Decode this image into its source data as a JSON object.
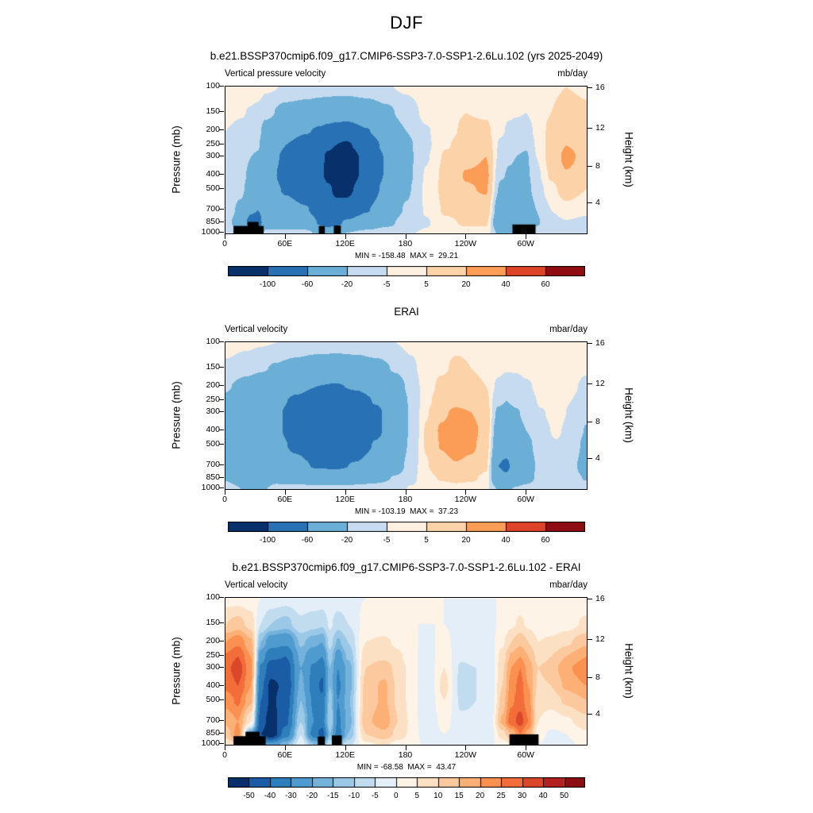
{
  "main_title": "DJF",
  "axes": {
    "pressure_label": "Pressure (mb)",
    "height_label": "Height (km)",
    "pressure_ticks": [
      100,
      150,
      200,
      250,
      300,
      400,
      500,
      700,
      850,
      1000
    ],
    "height_ticks": [
      {
        "km": "16",
        "p": 103
      },
      {
        "km": "12",
        "p": 193
      },
      {
        "km": "8",
        "p": 356
      },
      {
        "km": "4",
        "p": 628
      }
    ],
    "lon_ticks": [
      {
        "label": "0",
        "deg": 0
      },
      {
        "label": "60E",
        "deg": 60
      },
      {
        "label": "120E",
        "deg": 120
      },
      {
        "label": "180",
        "deg": 180
      },
      {
        "label": "120W",
        "deg": 240
      },
      {
        "label": "60W",
        "deg": 300
      }
    ]
  },
  "colormaps": {
    "main": {
      "boundaries": [
        -100,
        -60,
        -20,
        -5,
        5,
        20,
        40,
        60
      ],
      "tick_labels": [
        "-100",
        "-60",
        "-20",
        "-5",
        "5",
        "20",
        "40",
        "60"
      ],
      "colors": [
        "#08306b",
        "#2971b5",
        "#6baed6",
        "#c6dbef",
        "#fdf0e1",
        "#fcd2a9",
        "#fb9c57",
        "#dc4327",
        "#8f0d12"
      ]
    },
    "diff": {
      "boundaries": [
        -50,
        -40,
        -30,
        -20,
        -15,
        -10,
        -5,
        0,
        5,
        10,
        15,
        20,
        25,
        30,
        40,
        50
      ],
      "tick_labels": [
        "-50",
        "-40",
        "-30",
        "-20",
        "-15",
        "-10",
        "-5",
        "0",
        "5",
        "10",
        "15",
        "20",
        "25",
        "30",
        "40",
        "50"
      ],
      "colors": [
        "#08306b",
        "#1b5ca6",
        "#2e7ebc",
        "#4f9bcf",
        "#74b2dc",
        "#9ac8e6",
        "#c1dcef",
        "#e3eef8",
        "#fdf3e6",
        "#fce0c4",
        "#fcc99e",
        "#fcb076",
        "#fa9150",
        "#f26d3a",
        "#da472a",
        "#b41f20",
        "#8c0d12"
      ]
    }
  },
  "chart_data": [
    {
      "type": "heatmap",
      "title": "b.e21.BSSP370cmip6.f09_g17.CMIP6-SSP3-7.0-SSP1-2.6Lu.102 (yrs 2025-2049)",
      "var_label": "Vertical pressure velocity",
      "units": "mb/day",
      "min": -158.48,
      "max": 29.21,
      "stats_label": "MIN = -158.48  MAX =  29.21",
      "cmap": "main",
      "x_name": "longitude_deg",
      "y_name": "pressure_mb",
      "levels": [
        100,
        150,
        200,
        250,
        300,
        400,
        500,
        700,
        850,
        1000
      ],
      "lons": [
        0,
        15,
        25,
        32,
        40,
        60,
        80,
        95,
        102,
        110,
        120,
        140,
        160,
        180,
        200,
        220,
        240,
        260,
        275,
        283,
        290,
        300,
        310,
        325,
        340,
        360
      ],
      "values": [
        [
          2,
          -2,
          -5,
          -6,
          -6,
          -7,
          -8,
          -10,
          -12,
          -8
        ],
        [
          1,
          -4,
          -8,
          -10,
          -12,
          -14,
          -16,
          -25,
          -35,
          -20
        ],
        [
          0,
          -6,
          -12,
          -16,
          -20,
          -25,
          -30,
          -55,
          -75,
          -40
        ],
        [
          0,
          -8,
          -14,
          -18,
          -22,
          -28,
          -35,
          -60,
          -80,
          -45
        ],
        [
          -3,
          -15,
          -30,
          -40,
          -45,
          -50,
          -50,
          -45,
          -35,
          -15
        ],
        [
          -6,
          -28,
          -50,
          -60,
          -65,
          -68,
          -62,
          -52,
          -38,
          -14
        ],
        [
          -8,
          -33,
          -58,
          -72,
          -80,
          -82,
          -72,
          -58,
          -40,
          -14
        ],
        [
          -10,
          -38,
          -65,
          -85,
          -95,
          -95,
          -85,
          -75,
          -65,
          -30
        ],
        [
          -10,
          -40,
          -70,
          -95,
          -105,
          -108,
          -95,
          -85,
          -75,
          -35
        ],
        [
          -11,
          -42,
          -75,
          -100,
          -112,
          -115,
          -105,
          -90,
          -70,
          -30
        ],
        [
          -11,
          -44,
          -78,
          -105,
          -118,
          -118,
          -108,
          -85,
          -55,
          -20
        ],
        [
          -9,
          -36,
          -62,
          -82,
          -92,
          -92,
          -82,
          -62,
          -40,
          -14
        ],
        [
          -6,
          -25,
          -42,
          -52,
          -58,
          -58,
          -52,
          -40,
          -26,
          -10
        ],
        [
          -3,
          -12,
          -20,
          -25,
          -26,
          -26,
          -23,
          -18,
          -12,
          -6
        ],
        [
          1,
          -2,
          -6,
          -7,
          -6,
          -4,
          -3,
          -4,
          -6,
          -4
        ],
        [
          3,
          3,
          2,
          4,
          7,
          9,
          9,
          7,
          2,
          -2
        ],
        [
          4,
          5,
          7,
          11,
          16,
          21,
          19,
          14,
          7,
          0
        ],
        [
          3,
          4,
          7,
          12,
          20,
          23,
          21,
          15,
          7,
          0
        ],
        [
          2,
          0,
          -3,
          -8,
          -12,
          -18,
          -25,
          -45,
          -55,
          -28
        ],
        [
          1,
          -3,
          -8,
          -14,
          -18,
          -22,
          -28,
          -50,
          -58,
          -30
        ],
        [
          0,
          -4,
          -10,
          -16,
          -20,
          -24,
          -28,
          -45,
          -50,
          -26
        ],
        [
          0,
          -5,
          -12,
          -18,
          -22,
          -25,
          -28,
          -42,
          -45,
          -24
        ],
        [
          2,
          0,
          -2,
          -4,
          -5,
          -8,
          -12,
          -20,
          -22,
          -14
        ],
        [
          4,
          5,
          8,
          10,
          10,
          7,
          2,
          -5,
          -10,
          -9
        ],
        [
          5,
          8,
          14,
          20,
          24,
          19,
          11,
          1,
          -6,
          -7
        ],
        [
          4,
          6,
          11,
          15,
          15,
          11,
          5,
          -3,
          -8,
          -8
        ]
      ],
      "topo_bars": [
        {
          "from": 8,
          "to": 38,
          "top_p": 900
        },
        {
          "from": 22,
          "to": 33,
          "top_p": 845
        },
        {
          "from": 93,
          "to": 99,
          "top_p": 900
        },
        {
          "from": 108,
          "to": 115,
          "top_p": 895
        },
        {
          "from": 286,
          "to": 309,
          "top_p": 880
        }
      ]
    },
    {
      "type": "heatmap",
      "title": "ERAI",
      "var_label": "Vertical velocity",
      "units": "mbar/day",
      "min": -103.19,
      "max": 37.23,
      "stats_label": "MIN = -103.19  MAX =  37.23",
      "cmap": "main",
      "x_name": "longitude_deg",
      "y_name": "pressure_mb",
      "levels": [
        100,
        150,
        200,
        250,
        300,
        400,
        500,
        700,
        850,
        1000
      ],
      "lons": [
        0,
        20,
        35,
        50,
        70,
        90,
        110,
        130,
        150,
        170,
        185,
        200,
        215,
        230,
        245,
        260,
        272,
        280,
        290,
        300,
        315,
        330,
        345,
        360
      ],
      "values": [
        [
          1,
          -8,
          -18,
          -24,
          -28,
          -32,
          -32,
          -28,
          -22,
          -10
        ],
        [
          -2,
          -14,
          -28,
          -36,
          -42,
          -46,
          -46,
          -42,
          -50,
          -22
        ],
        [
          -4,
          -18,
          -35,
          -45,
          -50,
          -52,
          -50,
          -45,
          -55,
          -25
        ],
        [
          -5,
          -22,
          -42,
          -52,
          -56,
          -56,
          -52,
          -42,
          -30,
          -12
        ],
        [
          -7,
          -28,
          -52,
          -65,
          -72,
          -72,
          -65,
          -52,
          -33,
          -12
        ],
        [
          -9,
          -34,
          -60,
          -78,
          -88,
          -90,
          -80,
          -62,
          -38,
          -13
        ],
        [
          -10,
          -36,
          -62,
          -82,
          -92,
          -94,
          -84,
          -64,
          -40,
          -14
        ],
        [
          -9,
          -33,
          -57,
          -74,
          -84,
          -84,
          -76,
          -58,
          -36,
          -12
        ],
        [
          -7,
          -27,
          -46,
          -58,
          -65,
          -65,
          -58,
          -45,
          -28,
          -10
        ],
        [
          -5,
          -18,
          -30,
          -38,
          -42,
          -42,
          -38,
          -30,
          -18,
          -8
        ],
        [
          -2,
          -8,
          -14,
          -17,
          -18,
          -18,
          -16,
          -12,
          -8,
          -4
        ],
        [
          1,
          1,
          1,
          2,
          4,
          6,
          6,
          4,
          1,
          -2
        ],
        [
          3,
          4,
          7,
          11,
          17,
          22,
          21,
          15,
          6,
          -1
        ],
        [
          4,
          6,
          9,
          15,
          23,
          29,
          27,
          19,
          9,
          0
        ],
        [
          4,
          5,
          8,
          13,
          20,
          25,
          23,
          16,
          7,
          -1
        ],
        [
          3,
          3,
          5,
          8,
          12,
          14,
          12,
          7,
          2,
          -2
        ],
        [
          1,
          -2,
          -8,
          -16,
          -24,
          -34,
          -44,
          -60,
          -50,
          -22
        ],
        [
          0,
          -4,
          -12,
          -20,
          -28,
          -38,
          -48,
          -65,
          -55,
          -24
        ],
        [
          0,
          -4,
          -10,
          -16,
          -22,
          -28,
          -34,
          -46,
          -38,
          -18
        ],
        [
          1,
          -2,
          -7,
          -11,
          -15,
          -20,
          -25,
          -32,
          -28,
          -14
        ],
        [
          2,
          1,
          -1,
          -3,
          -6,
          -9,
          -11,
          -13,
          -13,
          -8
        ],
        [
          3,
          3,
          3,
          2,
          0,
          -3,
          -6,
          -10,
          -12,
          -8
        ],
        [
          2,
          1,
          -2,
          -5,
          -7,
          -10,
          -13,
          -17,
          -16,
          -9
        ],
        [
          1,
          -3,
          -9,
          -14,
          -17,
          -21,
          -24,
          -26,
          -21,
          -11
        ]
      ],
      "topo_bars": []
    },
    {
      "type": "heatmap",
      "title": "b.e21.BSSP370cmip6.f09_g17.CMIP6-SSP3-7.0-SSP1-2.6Lu.102 - ERAI",
      "var_label": "Vertical velocity",
      "units": "mbar/day",
      "min": -68.58,
      "max": 43.47,
      "stats_label": "MIN = -68.58  MAX =  43.47",
      "cmap": "diff",
      "x_name": "longitude_deg",
      "y_name": "pressure_mb",
      "levels": [
        100,
        150,
        200,
        250,
        300,
        400,
        500,
        700,
        850,
        1000
      ],
      "lons": [
        0,
        12,
        25,
        35,
        45,
        60,
        75,
        88,
        96,
        104,
        112,
        122,
        140,
        158,
        172,
        185,
        200,
        218,
        235,
        250,
        264,
        276,
        285,
        294,
        302,
        312,
        325,
        340,
        360
      ],
      "values": [
        [
          3,
          10,
          20,
          26,
          28,
          26,
          22,
          16,
          12,
          6
        ],
        [
          3,
          12,
          24,
          30,
          33,
          30,
          26,
          20,
          22,
          10
        ],
        [
          2,
          8,
          16,
          20,
          22,
          20,
          16,
          5,
          -20,
          -10
        ],
        [
          0,
          -5,
          -15,
          -25,
          -32,
          -38,
          -40,
          -45,
          -50,
          -25
        ],
        [
          -2,
          -10,
          -25,
          -38,
          -46,
          -52,
          -52,
          -55,
          -58,
          -28
        ],
        [
          -3,
          -12,
          -28,
          -40,
          -46,
          -48,
          -45,
          -42,
          -35,
          -16
        ],
        [
          -2,
          -6,
          -14,
          -18,
          -20,
          -18,
          -15,
          -10,
          -5,
          -2
        ],
        [
          -2,
          -8,
          -18,
          -26,
          -32,
          -35,
          -32,
          -30,
          -35,
          -15
        ],
        [
          -2,
          -9,
          -20,
          -30,
          -38,
          -42,
          -38,
          -35,
          -45,
          -20
        ],
        [
          -1,
          -4,
          -8,
          -12,
          -15,
          -15,
          -12,
          -10,
          -15,
          -6
        ],
        [
          -2,
          -8,
          -16,
          -24,
          -30,
          -32,
          -30,
          -32,
          -35,
          -15
        ],
        [
          -1,
          -5,
          -10,
          -14,
          -18,
          -18,
          -16,
          -18,
          -15,
          -7
        ],
        [
          0,
          2,
          5,
          8,
          10,
          12,
          12,
          14,
          10,
          4
        ],
        [
          0,
          2,
          6,
          9,
          13,
          16,
          16,
          18,
          14,
          6
        ],
        [
          0,
          1,
          4,
          6,
          8,
          9,
          9,
          10,
          8,
          3
        ],
        [
          0,
          0,
          1,
          2,
          3,
          3,
          3,
          4,
          4,
          2
        ],
        [
          0,
          0,
          -1,
          -3,
          -4,
          -5,
          -5,
          -5,
          -3,
          -1
        ],
        [
          0,
          0,
          1,
          3,
          5,
          7,
          5,
          2,
          0,
          -1
        ],
        [
          0,
          -1,
          -2,
          -4,
          -6,
          -7,
          -6,
          -4,
          -2,
          -1
        ],
        [
          0,
          -1,
          -2,
          -3,
          -5,
          -5,
          -5,
          -4,
          -2,
          -1
        ],
        [
          0,
          -1,
          -2,
          -3,
          -4,
          -4,
          -4,
          -3,
          -2,
          -1
        ],
        [
          0,
          1,
          4,
          7,
          9,
          10,
          12,
          16,
          8,
          2
        ],
        [
          1,
          4,
          10,
          16,
          20,
          22,
          24,
          28,
          15,
          5
        ],
        [
          2,
          6,
          14,
          20,
          25,
          27,
          28,
          32,
          25,
          10
        ],
        [
          1,
          4,
          10,
          15,
          18,
          20,
          22,
          25,
          18,
          7
        ],
        [
          0,
          2,
          5,
          8,
          10,
          9,
          7,
          5,
          2,
          0
        ],
        [
          0,
          2,
          6,
          10,
          12,
          10,
          7,
          2,
          -1,
          -2
        ],
        [
          1,
          3,
          9,
          15,
          19,
          16,
          11,
          4,
          0,
          -1
        ],
        [
          2,
          6,
          14,
          20,
          24,
          20,
          15,
          8,
          4,
          2
        ]
      ],
      "topo_bars": [
        {
          "from": 8,
          "to": 40,
          "top_p": 885
        },
        {
          "from": 20,
          "to": 34,
          "top_p": 825
        },
        {
          "from": 92,
          "to": 99,
          "top_p": 890
        },
        {
          "from": 106,
          "to": 116,
          "top_p": 875
        },
        {
          "from": 283,
          "to": 312,
          "top_p": 860
        }
      ]
    }
  ]
}
